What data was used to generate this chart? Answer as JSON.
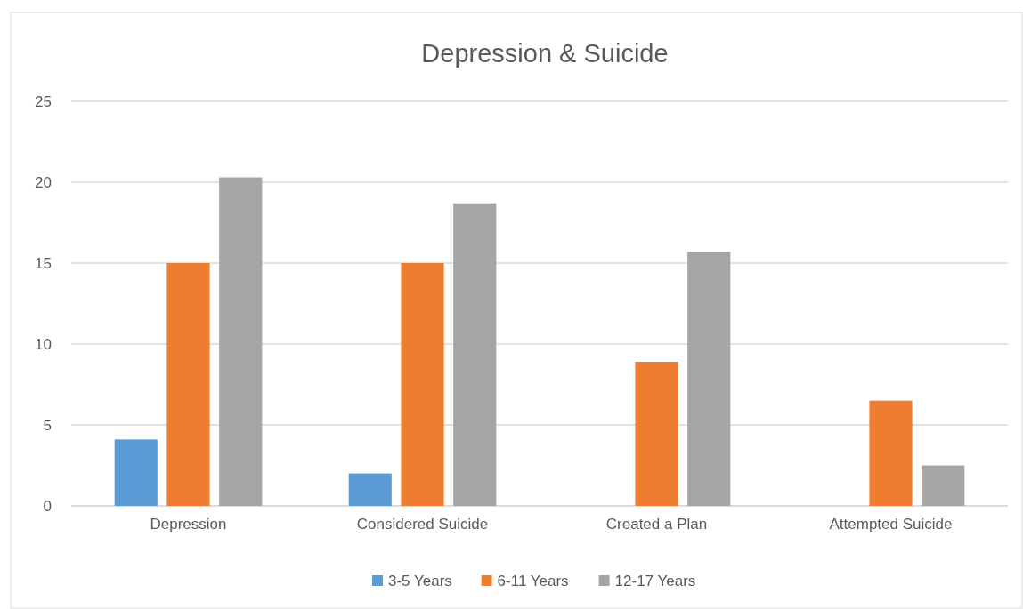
{
  "chart_data": {
    "type": "bar",
    "title": "Depression & Suicide",
    "categories": [
      "Depression",
      "Considered Suicide",
      "Created a Plan",
      "Attempted Suicide"
    ],
    "series": [
      {
        "name": "3-5 Years",
        "color": "#5b9bd5",
        "values": [
          4.1,
          2,
          0,
          0
        ]
      },
      {
        "name": "6-11 Years",
        "color": "#ed7d31",
        "values": [
          15,
          15,
          8.9,
          6.5
        ]
      },
      {
        "name": "12-17 Years",
        "color": "#a5a5a5",
        "values": [
          20.3,
          18.7,
          15.7,
          2.5
        ]
      }
    ],
    "ylim": [
      0,
      25
    ],
    "yticks": [
      0,
      5,
      10,
      15,
      20,
      25
    ],
    "grid": "y",
    "legend": "bottom"
  }
}
